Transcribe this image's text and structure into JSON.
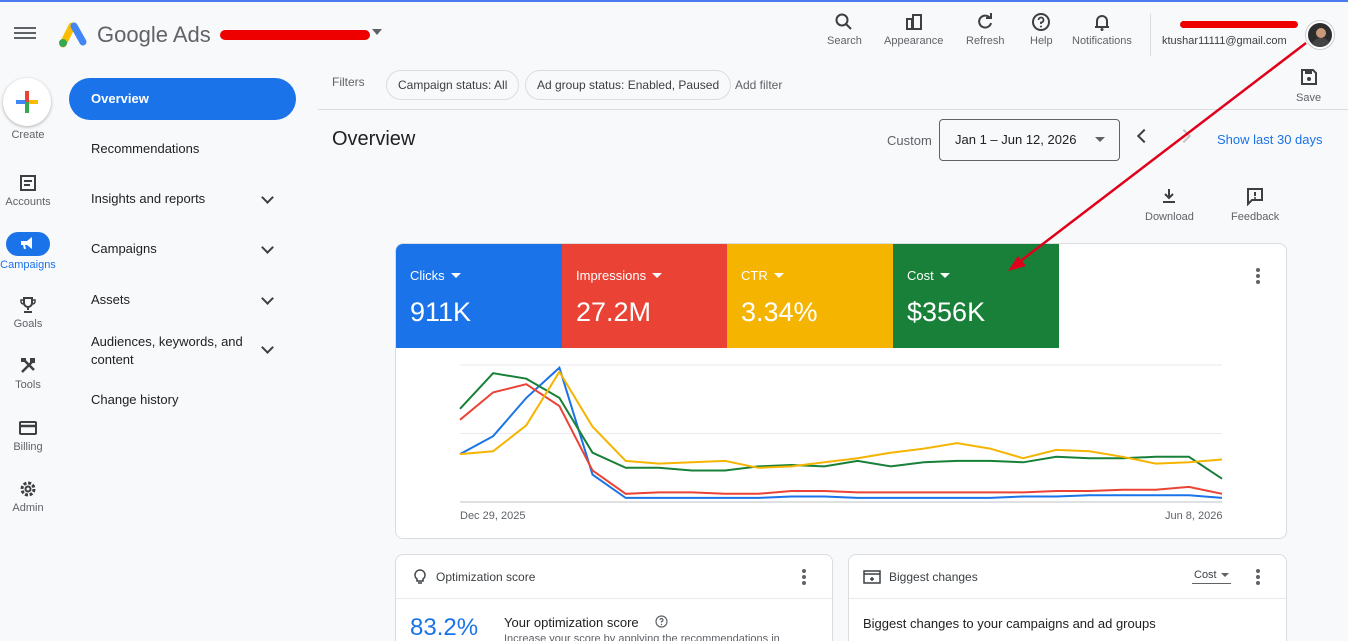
{
  "header": {
    "brand": "Google Ads",
    "account_name": "",
    "tools": [
      {
        "icon": "search-icon",
        "label": "Search"
      },
      {
        "icon": "appearance-icon",
        "label": "Appearance"
      },
      {
        "icon": "refresh-icon",
        "label": "Refresh"
      },
      {
        "icon": "help-icon",
        "label": "Help"
      },
      {
        "icon": "bell-icon",
        "label": "Notifications"
      }
    ],
    "email": "ktushar11111@gmail.com"
  },
  "rail": {
    "create": "Create",
    "items": [
      {
        "icon": "accounts-icon",
        "label": "Accounts"
      },
      {
        "icon": "campaigns-icon",
        "label": "Campaigns"
      },
      {
        "icon": "trophy-icon",
        "label": "Goals"
      },
      {
        "icon": "tools-icon",
        "label": "Tools"
      },
      {
        "icon": "billing-icon",
        "label": "Billing"
      },
      {
        "icon": "admin-icon",
        "label": "Admin"
      }
    ]
  },
  "nav": {
    "items": [
      {
        "label": "Overview"
      },
      {
        "label": "Recommendations"
      },
      {
        "label": "Insights and reports"
      },
      {
        "label": "Campaigns"
      },
      {
        "label": "Assets"
      },
      {
        "label": "Audiences, keywords, and content"
      },
      {
        "label": "Change history"
      }
    ]
  },
  "filters": {
    "label": "Filters",
    "chips": [
      "Campaign status: All",
      "Ad group status: Enabled, Paused"
    ],
    "add": "Add filter",
    "save": "Save"
  },
  "overview": {
    "title": "Overview",
    "custom": "Custom",
    "date_range": "Jan 1 – Jun 12, 2026",
    "show_last": "Show last 30 days",
    "download": "Download",
    "feedback": "Feedback"
  },
  "metrics": [
    {
      "label": "Clicks",
      "value": "911K",
      "color": "#1a73e8"
    },
    {
      "label": "Impressions",
      "value": "27.2M",
      "color": "#ea4335"
    },
    {
      "label": "CTR",
      "value": "3.34%",
      "color": "#f5b400"
    },
    {
      "label": "Cost",
      "value": "$356K",
      "color": "#188038"
    }
  ],
  "chart_data": {
    "type": "line",
    "x_start_label": "Dec 29, 2025",
    "x_end_label": "Jun 8, 2026",
    "y_axis_labels": "none",
    "grid": "horizontal",
    "series": [
      {
        "color": "#1a73e8",
        "values": [
          0.35,
          0.48,
          0.76,
          0.98,
          0.2,
          0.03,
          0.03,
          0.03,
          0.03,
          0.03,
          0.04,
          0.04,
          0.03,
          0.03,
          0.03,
          0.03,
          0.03,
          0.04,
          0.04,
          0.05,
          0.05,
          0.05,
          0.05,
          0.03
        ]
      },
      {
        "color": "#ea4335",
        "values": [
          0.6,
          0.8,
          0.86,
          0.7,
          0.23,
          0.06,
          0.07,
          0.07,
          0.06,
          0.06,
          0.08,
          0.08,
          0.07,
          0.07,
          0.07,
          0.07,
          0.07,
          0.07,
          0.08,
          0.08,
          0.09,
          0.09,
          0.11,
          0.06
        ]
      },
      {
        "color": "#188038",
        "values": [
          0.68,
          0.94,
          0.9,
          0.76,
          0.36,
          0.25,
          0.25,
          0.23,
          0.23,
          0.26,
          0.27,
          0.26,
          0.3,
          0.26,
          0.29,
          0.3,
          0.3,
          0.29,
          0.33,
          0.32,
          0.32,
          0.33,
          0.33,
          0.17
        ]
      },
      {
        "color": "#f5b400",
        "values": [
          0.35,
          0.37,
          0.56,
          0.95,
          0.55,
          0.3,
          0.28,
          0.29,
          0.3,
          0.25,
          0.26,
          0.29,
          0.32,
          0.36,
          0.39,
          0.43,
          0.39,
          0.32,
          0.38,
          0.37,
          0.33,
          0.28,
          0.29,
          0.31
        ]
      }
    ]
  },
  "optimization": {
    "title": "Optimization score",
    "score": "83.2%",
    "heading": "Your optimization score",
    "desc": "Increase your score by applying the recommendations in"
  },
  "changes": {
    "title": "Biggest changes",
    "select": "Cost",
    "heading": "Biggest changes to your campaigns and ad groups"
  }
}
